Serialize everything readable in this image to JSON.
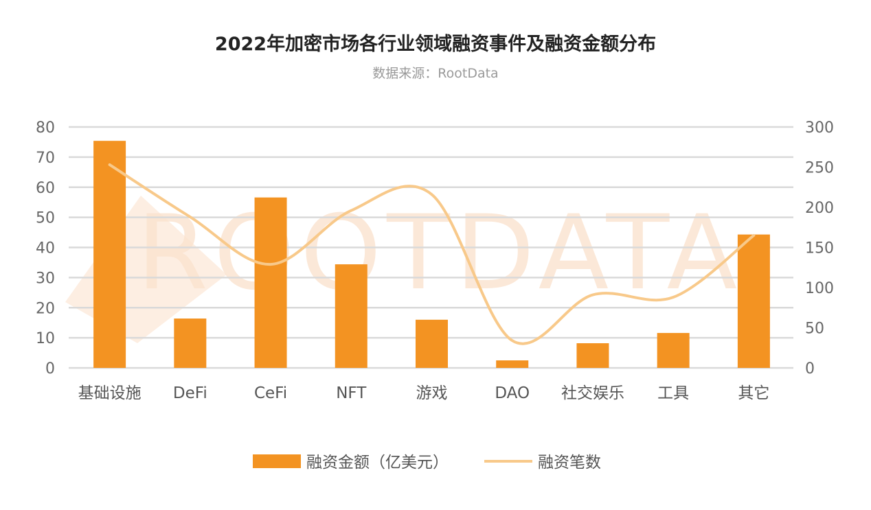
{
  "chart_data": {
    "type": "bar+line",
    "title": "2022年加密市场各行业领域融资事件及融资金额分布",
    "subtitle": "数据来源：RootData",
    "watermark": "ROOTDATA",
    "categories": [
      "基础设施",
      "DeFi",
      "CeFi",
      "NFT",
      "游戏",
      "DAO",
      "社交娱乐",
      "工具",
      "其它"
    ],
    "series": [
      {
        "name": "融资金额（亿美元）",
        "type": "bar",
        "axis": "left",
        "color": "#F39322",
        "values": [
          75.4,
          16.4,
          56.6,
          34.4,
          16.0,
          2.5,
          8.2,
          11.6,
          44.3
        ]
      },
      {
        "name": "融资笔数",
        "type": "line",
        "axis": "right",
        "color": "#F8C98A",
        "values": [
          253,
          188,
          129,
          196,
          216,
          34,
          91,
          88,
          165
        ]
      }
    ],
    "y_left": {
      "ylim": [
        0,
        80
      ],
      "ticks": [
        "0",
        "10",
        "20",
        "30",
        "40",
        "50",
        "60",
        "70",
        "80"
      ]
    },
    "y_right": {
      "ylim": [
        0,
        300
      ],
      "ticks": [
        "0",
        "50",
        "100",
        "150",
        "200",
        "250",
        "300"
      ]
    },
    "grid": true,
    "legend": "bottom-center"
  }
}
